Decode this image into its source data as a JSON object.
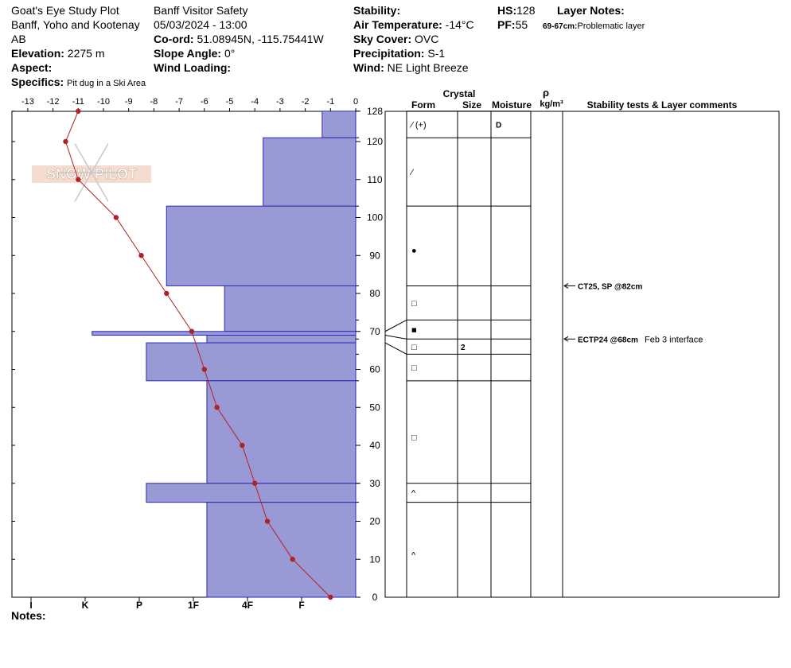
{
  "header": {
    "location_name": "Goat's Eye Study Plot",
    "region": "Banff, Yoho and Kootenay",
    "province": "AB",
    "elevation_label": "Elevation:",
    "elevation_value": "2275 m",
    "aspect_label": "Aspect:",
    "aspect_value": "",
    "specifics_label": "Specifics:",
    "specifics_value": "Pit dug in a Ski Area",
    "organization": "Banff  Visitor Safety",
    "datetime": "05/03/2024 - 13:00",
    "coord_label": "Co-ord:",
    "coord_value": "51.08945N, -115.75441W",
    "slope_label": "Slope Angle:",
    "slope_value": "0°",
    "wind_loading_label": "Wind Loading:",
    "wind_loading_value": "",
    "stability_label": "Stability:",
    "stability_value": "",
    "air_temp_label": "Air Temperature:",
    "air_temp_value": "-14°C",
    "sky_label": "Sky Cover:",
    "sky_value": "OVC",
    "precip_label": "Precipitation:",
    "precip_value": "S-1",
    "wind_label": "Wind:",
    "wind_value": "NE Light Breeze",
    "hs_label": "HS:",
    "hs_value": "128",
    "pf_label": "PF:",
    "pf_value": "55",
    "layer_notes_label": "Layer Notes:",
    "layer_note_range": "69-67cm:",
    "layer_note_text": "Problematic layer",
    "notes_label": "Notes:"
  },
  "table_headers": {
    "crystal": "Crystal",
    "form": "Form",
    "size": "Size",
    "moisture": "Moisture",
    "rho": "ρ",
    "density_unit": "kg/m³",
    "stability": "Stability tests & Layer comments"
  },
  "watermark": "SNOW PILOT",
  "colors": {
    "hardness_fill": "#9999d6",
    "hardness_stroke": "#2a2ab4",
    "temperature": "#b22222",
    "grid": "#000000"
  },
  "chart_data": {
    "type": "line",
    "temp_axis": {
      "ticks": [
        -13,
        -12,
        -11,
        -10,
        -9,
        -8,
        -7,
        -6,
        -5,
        -4,
        -3,
        -2,
        -1,
        0
      ],
      "range": [
        -13.5,
        0
      ]
    },
    "height_axis": {
      "ticks": [
        0,
        10,
        20,
        30,
        40,
        50,
        60,
        70,
        80,
        90,
        100,
        110,
        120,
        128
      ],
      "range": [
        0,
        128
      ]
    },
    "hardness_axis": {
      "labels": [
        "I",
        "K",
        "P",
        "1F",
        "4F",
        "F"
      ],
      "values": [
        6,
        5,
        4,
        3,
        2,
        1
      ]
    },
    "temperature_profile": [
      {
        "h": 128,
        "t": -11.0
      },
      {
        "h": 120,
        "t": -11.5
      },
      {
        "h": 110,
        "t": -11.0
      },
      {
        "h": 100,
        "t": -9.5
      },
      {
        "h": 90,
        "t": -8.5
      },
      {
        "h": 80,
        "t": -7.5
      },
      {
        "h": 70,
        "t": -6.5
      },
      {
        "h": 60,
        "t": -6.0
      },
      {
        "h": 50,
        "t": -5.5
      },
      {
        "h": 40,
        "t": -4.5
      },
      {
        "h": 30,
        "t": -4.0
      },
      {
        "h": 20,
        "t": -3.5
      },
      {
        "h": 10,
        "t": -2.5
      },
      {
        "h": 0,
        "t": -1.0
      }
    ],
    "hardness_layers": [
      {
        "bottom": 121,
        "top": 128,
        "hardness": 1.33
      },
      {
        "bottom": 103,
        "top": 121,
        "hardness": 3.67
      },
      {
        "bottom": 82,
        "top": 103,
        "hardness": 7.5
      },
      {
        "bottom": 70,
        "top": 82,
        "hardness": 5.2
      },
      {
        "bottom": 69,
        "top": 70,
        "hardness": 10.45
      },
      {
        "bottom": 67,
        "top": 69,
        "hardness": 5.9
      },
      {
        "bottom": 57,
        "top": 67,
        "hardness": 8.3
      },
      {
        "bottom": 30,
        "top": 57,
        "hardness": 5.9
      },
      {
        "bottom": 25,
        "top": 30,
        "hardness": 8.3
      },
      {
        "bottom": 0,
        "top": 25,
        "hardness": 5.9
      }
    ],
    "layer_boundaries": [
      128,
      121,
      103,
      82,
      73,
      68,
      64,
      57,
      30,
      25
    ],
    "layer_rows": [
      {
        "top": 128,
        "bottom": 121,
        "form": "⁄ (+)",
        "size": "",
        "moisture": "D"
      },
      {
        "top": 121,
        "bottom": 103,
        "form": "⁄",
        "size": "",
        "moisture": ""
      },
      {
        "top": 103,
        "bottom": 82,
        "form": "●",
        "size": "",
        "moisture": ""
      },
      {
        "top": 82,
        "bottom": 73,
        "form": "□",
        "size": "",
        "moisture": ""
      },
      {
        "top": 73,
        "bottom": 68,
        "form": "■",
        "size": "",
        "moisture": ""
      },
      {
        "top": 68,
        "bottom": 64,
        "form": "□",
        "size": "2",
        "moisture": ""
      },
      {
        "top": 64,
        "bottom": 57,
        "form": "□",
        "size": "",
        "moisture": ""
      },
      {
        "top": 57,
        "bottom": 30,
        "form": "□",
        "size": "",
        "moisture": ""
      },
      {
        "top": 30,
        "bottom": 25,
        "form": "^",
        "size": "",
        "moisture": ""
      },
      {
        "top": 25,
        "bottom": 0,
        "form": "^",
        "size": "",
        "moisture": ""
      }
    ],
    "stability_tests": [
      {
        "h": 82,
        "label": "CT25, SP @82cm",
        "comment": ""
      },
      {
        "h": 68,
        "label": "ECTP24 @68cm",
        "comment": "Feb 3 interface"
      }
    ]
  }
}
